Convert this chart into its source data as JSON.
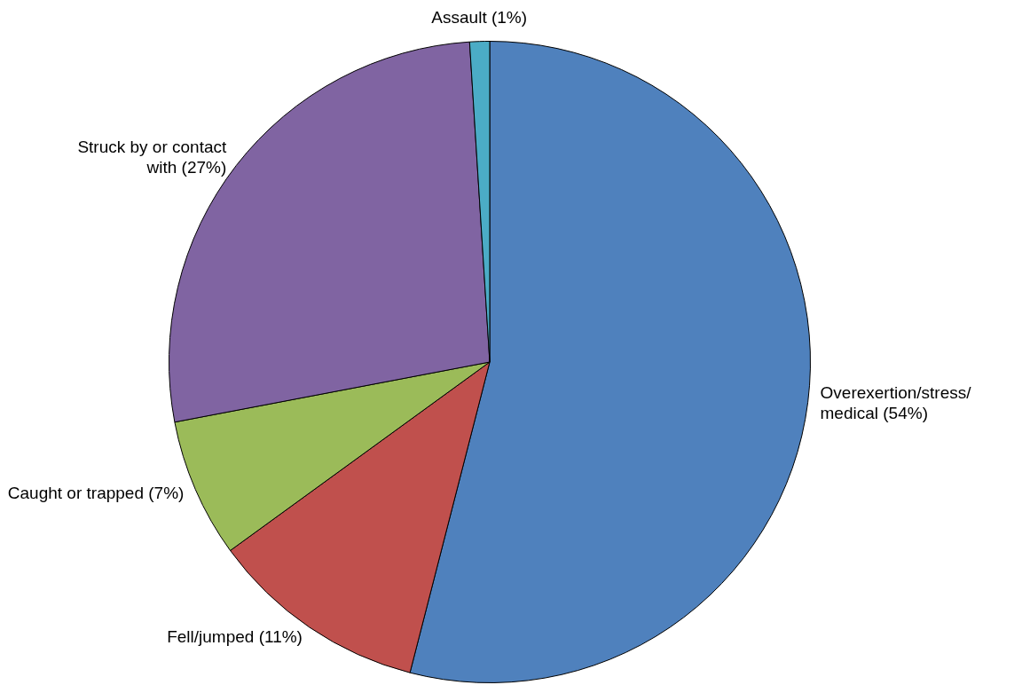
{
  "chart_data": {
    "type": "pie",
    "categories": [
      "Overexertion/stress/ medical (54%)",
      "Fell/jumped (11%)",
      "Caught or trapped (7%)",
      "Struck by or contact with (27%)",
      "Assault (1%)"
    ],
    "values": [
      54,
      11,
      7,
      27,
      1
    ],
    "colors": [
      "#4f81bd",
      "#c0504d",
      "#9bbb59",
      "#8064a2",
      "#4bacc6"
    ],
    "legend": false
  }
}
